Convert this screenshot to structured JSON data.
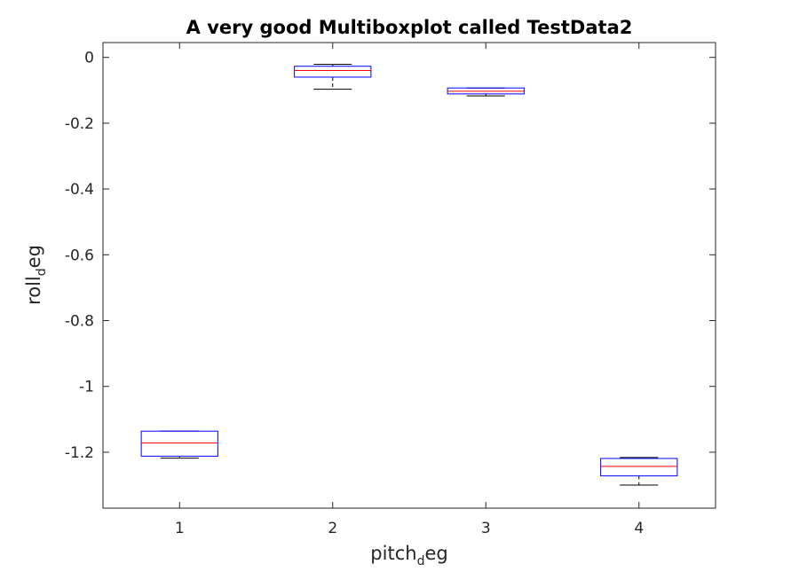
{
  "chart_data": {
    "type": "boxplot",
    "title": "A very good Multiboxplot called TestData2",
    "xlabel": {
      "main": "pitch",
      "sub": "d",
      "rest": "eg"
    },
    "ylabel": {
      "main": "roll",
      "sub": "d",
      "rest": "eg"
    },
    "categories": [
      "1",
      "2",
      "3",
      "4"
    ],
    "xlim": [
      0.5,
      4.5
    ],
    "ylim": [
      -1.37,
      0.045
    ],
    "yticks": [
      0,
      -0.2,
      -0.4,
      -0.6,
      -0.8,
      -1,
      -1.2
    ],
    "ytick_labels": [
      "0",
      "-0.2",
      "-0.4",
      "-0.6",
      "-0.8",
      "-1",
      "-1.2"
    ],
    "grid": false,
    "boxes": [
      {
        "category": "1",
        "whisker_low": -1.218,
        "q1": -1.212,
        "median": -1.172,
        "q3": -1.136,
        "whisker_high": -1.136
      },
      {
        "category": "2",
        "whisker_low": -0.097,
        "q1": -0.06,
        "median": -0.04,
        "q3": -0.027,
        "whisker_high": -0.021
      },
      {
        "category": "3",
        "whisker_low": -0.117,
        "q1": -0.111,
        "median": -0.103,
        "q3": -0.093,
        "whisker_high": -0.093
      },
      {
        "category": "4",
        "whisker_low": -1.3,
        "q1": -1.272,
        "median": -1.243,
        "q3": -1.219,
        "whisker_high": -1.216
      }
    ],
    "colors": {
      "box": "#0000ff",
      "median": "#ff0000",
      "whisker": "#000000",
      "axes": "#262626"
    }
  }
}
